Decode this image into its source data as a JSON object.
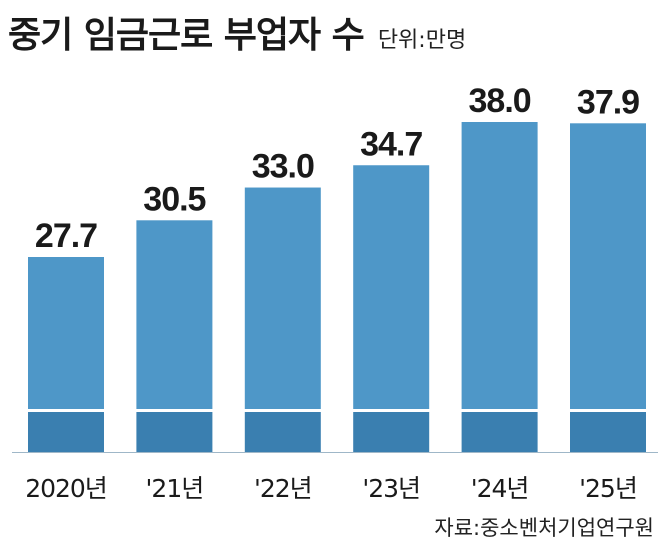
{
  "header": {
    "title": "중기 임금근로 부업자 수",
    "unit": "단위:만명"
  },
  "source": "자료:중소벤처기업연구원",
  "colors": {
    "bar_top": "#4e97c8",
    "bar_base": "#3a7fb0",
    "text": "#1a1a1a"
  },
  "chart_data": {
    "type": "bar",
    "title": "중기 임금근로 부업자 수",
    "categories": [
      "2020년",
      "'21년",
      "'22년",
      "'23년",
      "'24년",
      "'25년"
    ],
    "values": [
      27.7,
      30.5,
      33.0,
      34.7,
      38.0,
      37.9
    ],
    "data_labels": [
      "27.7",
      "30.5",
      "33.0",
      "34.7",
      "38.0",
      "37.9"
    ],
    "unit": "단위:만명",
    "grid": false,
    "legend": "none"
  }
}
